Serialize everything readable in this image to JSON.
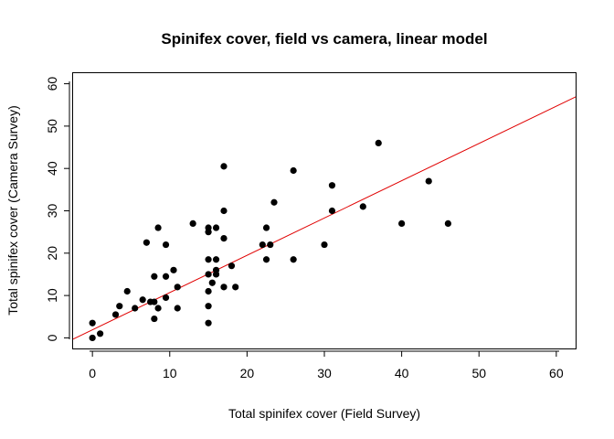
{
  "chart_data": {
    "type": "scatter",
    "title": "Spinifex cover, field vs camera, linear model",
    "xlabel": "Total spinifex cover (Field Survey)",
    "ylabel": "Total spinifex cover (Camera Survey)",
    "xlim": [
      -2.5,
      62.5
    ],
    "ylim": [
      -2.5,
      62.5
    ],
    "x_ticks": [
      0,
      10,
      20,
      30,
      40,
      50,
      60
    ],
    "y_ticks": [
      0,
      10,
      20,
      30,
      40,
      50,
      60
    ],
    "grid": false,
    "legend": "none",
    "point_color": "#000000",
    "fit_line": {
      "intercept": 1.9,
      "slope": 0.88,
      "color": "#e00000"
    },
    "points": [
      {
        "x": 0,
        "y": 0
      },
      {
        "x": 0,
        "y": 3.5
      },
      {
        "x": 1,
        "y": 1
      },
      {
        "x": 3,
        "y": 5.5
      },
      {
        "x": 3.5,
        "y": 7.5
      },
      {
        "x": 4.5,
        "y": 11
      },
      {
        "x": 5.5,
        "y": 7
      },
      {
        "x": 6.5,
        "y": 9
      },
      {
        "x": 7,
        "y": 22.5
      },
      {
        "x": 7.5,
        "y": 8.5
      },
      {
        "x": 8,
        "y": 14.5
      },
      {
        "x": 8,
        "y": 8.5
      },
      {
        "x": 8,
        "y": 4.5
      },
      {
        "x": 8.5,
        "y": 7
      },
      {
        "x": 8.5,
        "y": 26
      },
      {
        "x": 9.5,
        "y": 22
      },
      {
        "x": 9.5,
        "y": 9.5
      },
      {
        "x": 9.5,
        "y": 14.5
      },
      {
        "x": 10.5,
        "y": 16
      },
      {
        "x": 11,
        "y": 12
      },
      {
        "x": 11,
        "y": 7
      },
      {
        "x": 13,
        "y": 27
      },
      {
        "x": 15,
        "y": 26
      },
      {
        "x": 15,
        "y": 25
      },
      {
        "x": 15,
        "y": 18.5
      },
      {
        "x": 15,
        "y": 15
      },
      {
        "x": 15,
        "y": 11
      },
      {
        "x": 15,
        "y": 7.5
      },
      {
        "x": 15,
        "y": 3.5
      },
      {
        "x": 15.5,
        "y": 13
      },
      {
        "x": 16,
        "y": 26
      },
      {
        "x": 16,
        "y": 18.5
      },
      {
        "x": 16,
        "y": 16
      },
      {
        "x": 16,
        "y": 15
      },
      {
        "x": 17,
        "y": 40.5
      },
      {
        "x": 17,
        "y": 30
      },
      {
        "x": 17,
        "y": 23.5
      },
      {
        "x": 17,
        "y": 12
      },
      {
        "x": 18,
        "y": 17
      },
      {
        "x": 18.5,
        "y": 12
      },
      {
        "x": 22,
        "y": 22
      },
      {
        "x": 22.5,
        "y": 26
      },
      {
        "x": 22.5,
        "y": 18.5
      },
      {
        "x": 23,
        "y": 22
      },
      {
        "x": 23.5,
        "y": 32
      },
      {
        "x": 26,
        "y": 39.5
      },
      {
        "x": 26,
        "y": 18.5
      },
      {
        "x": 30,
        "y": 22
      },
      {
        "x": 31,
        "y": 36
      },
      {
        "x": 31,
        "y": 30
      },
      {
        "x": 35,
        "y": 31
      },
      {
        "x": 37,
        "y": 46
      },
      {
        "x": 40,
        "y": 27
      },
      {
        "x": 43.5,
        "y": 37
      },
      {
        "x": 46,
        "y": 27
      }
    ]
  }
}
